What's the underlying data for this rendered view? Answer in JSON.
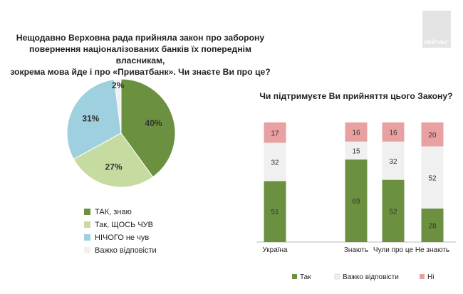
{
  "logo": {
    "text": "РЕЙТИНГ"
  },
  "chart_data": [
    {
      "type": "pie",
      "title": "Нещодавно Верховна рада прийняла закон про заборону\nповернення націоналізованих банків їх попереднім власникам,\nзокрема мова йде і про «Приватбанк». Чи знаєте Ви про це?",
      "slices": [
        {
          "label": "ТАК, знаю",
          "value": 40,
          "value_label": "40%",
          "color": "#6b9140"
        },
        {
          "label": "Так, ЩОСЬ ЧУВ",
          "value": 27,
          "value_label": "27%",
          "color": "#c5dba0"
        },
        {
          "label": "НІЧОГО не чув",
          "value": 31,
          "value_label": "31%",
          "color": "#9fd0e0"
        },
        {
          "label": "Важко відповісти",
          "value": 2,
          "value_label": "2%",
          "color": "#f0f0f0"
        }
      ],
      "legend_position": "bottom"
    },
    {
      "type": "bar",
      "stacked": true,
      "title": "Чи підтримуєте Ви прийняття цього Закону?",
      "categories": [
        "Україна",
        "Знають",
        "Чули про це",
        "Не знають"
      ],
      "series": [
        {
          "name": "Так",
          "values": [
            51,
            69,
            52,
            28
          ],
          "color": "#6b9140"
        },
        {
          "name": "Важко відповісти",
          "values": [
            32,
            15,
            32,
            52
          ],
          "color": "#f0f0f0"
        },
        {
          "name": "Ні",
          "values": [
            17,
            16,
            16,
            20
          ],
          "color": "#e8a0a0"
        }
      ],
      "ylim": [
        0,
        100
      ],
      "legend_position": "bottom"
    }
  ]
}
